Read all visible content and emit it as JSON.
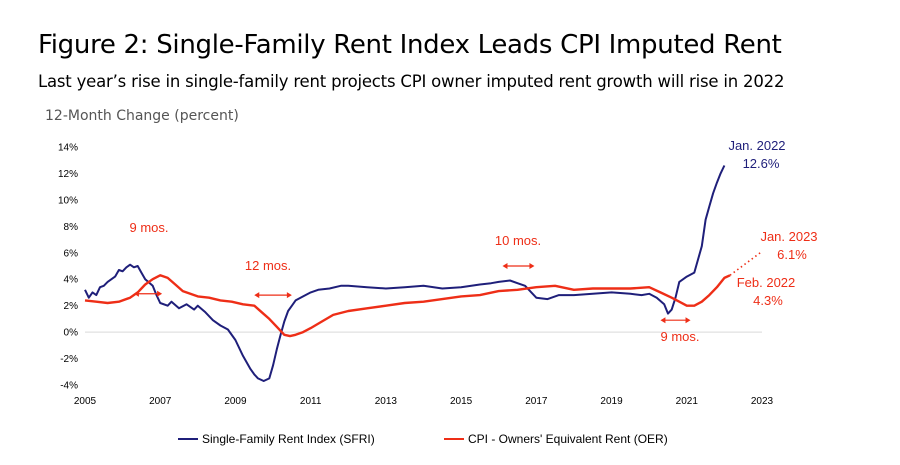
{
  "header": {
    "title": "Figure 2: Single-Family Rent Index Leads CPI Imputed Rent",
    "subtitle": "Last year’s rise in single-family rent projects CPI owner imputed rent growth will rise in 2022",
    "axis_title": "12-Month Change (percent)"
  },
  "colors": {
    "sfri": "#1f1f7a",
    "oer": "#ee2e17"
  },
  "legend": {
    "sfri": "Single-Family Rent Index (SFRI)",
    "oer": "CPI - Owners' Equivalent Rent (OER)"
  },
  "chart_data": {
    "type": "line",
    "xlabel": "",
    "ylabel": "12-Month Change (percent)",
    "xlim": [
      2005,
      2023
    ],
    "ylim": [
      -4,
      14
    ],
    "x_ticks": [
      "2005",
      "2007",
      "2009",
      "2011",
      "2013",
      "2015",
      "2017",
      "2019",
      "2021",
      "2023"
    ],
    "y_ticks": [
      "-4%",
      "-2%",
      "0%",
      "2%",
      "4%",
      "6%",
      "8%",
      "10%",
      "12%",
      "14%"
    ],
    "grid": false,
    "legend_position": "bottom",
    "series": [
      {
        "name": "Single-Family Rent Index (SFRI)",
        "key": "sfri",
        "x": [
          2005.0,
          2005.1,
          2005.2,
          2005.3,
          2005.4,
          2005.5,
          2005.6,
          2005.8,
          2005.9,
          2006.0,
          2006.1,
          2006.2,
          2006.3,
          2006.4,
          2006.5,
          2006.6,
          2006.8,
          2006.9,
          2007.0,
          2007.2,
          2007.3,
          2007.5,
          2007.7,
          2007.9,
          2008.0,
          2008.2,
          2008.4,
          2008.6,
          2008.8,
          2009.0,
          2009.2,
          2009.4,
          2009.5,
          2009.6,
          2009.75,
          2009.9,
          2010.0,
          2010.1,
          2010.2,
          2010.3,
          2010.4,
          2010.5,
          2010.6,
          2010.8,
          2011.0,
          2011.2,
          2011.5,
          2011.8,
          2012.0,
          2012.5,
          2013.0,
          2013.5,
          2014.0,
          2014.5,
          2015.0,
          2015.5,
          2015.8,
          2016.0,
          2016.3,
          2016.5,
          2016.7,
          2017.0,
          2017.3,
          2017.6,
          2018.0,
          2018.5,
          2019.0,
          2019.5,
          2019.8,
          2020.0,
          2020.2,
          2020.4,
          2020.5,
          2020.6,
          2020.7,
          2020.8,
          2021.0,
          2021.2,
          2021.4,
          2021.5,
          2021.6,
          2021.7,
          2021.8,
          2021.9,
          2022.0
        ],
        "y": [
          3.2,
          2.6,
          3.0,
          2.8,
          3.4,
          3.5,
          3.8,
          4.2,
          4.7,
          4.6,
          4.9,
          5.1,
          4.9,
          5.0,
          4.5,
          4.0,
          3.5,
          2.8,
          2.2,
          2.0,
          2.3,
          1.8,
          2.1,
          1.7,
          2.0,
          1.5,
          0.9,
          0.5,
          0.2,
          -0.6,
          -1.8,
          -2.8,
          -3.2,
          -3.5,
          -3.7,
          -3.5,
          -2.5,
          -1.3,
          -0.2,
          0.8,
          1.6,
          2.0,
          2.4,
          2.7,
          3.0,
          3.2,
          3.3,
          3.5,
          3.5,
          3.4,
          3.3,
          3.4,
          3.5,
          3.3,
          3.4,
          3.6,
          3.7,
          3.8,
          3.9,
          3.7,
          3.5,
          2.6,
          2.5,
          2.8,
          2.8,
          2.9,
          3.0,
          2.9,
          2.8,
          2.9,
          2.6,
          2.1,
          1.4,
          1.7,
          2.6,
          3.8,
          4.2,
          4.5,
          6.5,
          8.5,
          9.5,
          10.5,
          11.3,
          12.0,
          12.6
        ]
      },
      {
        "name": "CPI - Owners' Equivalent Rent (OER)",
        "key": "oer",
        "x": [
          2005.0,
          2005.3,
          2005.6,
          2005.9,
          2006.2,
          2006.4,
          2006.6,
          2006.8,
          2007.0,
          2007.2,
          2007.4,
          2007.6,
          2007.8,
          2008.0,
          2008.3,
          2008.6,
          2008.9,
          2009.2,
          2009.5,
          2009.7,
          2009.9,
          2010.1,
          2010.3,
          2010.45,
          2010.6,
          2010.8,
          2011.0,
          2011.3,
          2011.6,
          2012.0,
          2012.5,
          2013.0,
          2013.5,
          2014.0,
          2014.5,
          2015.0,
          2015.5,
          2016.0,
          2016.5,
          2017.0,
          2017.5,
          2018.0,
          2018.5,
          2019.0,
          2019.5,
          2020.0,
          2020.3,
          2020.6,
          2020.8,
          2021.0,
          2021.2,
          2021.4,
          2021.6,
          2021.8,
          2022.0,
          2022.15
        ],
        "y": [
          2.4,
          2.3,
          2.2,
          2.3,
          2.6,
          3.0,
          3.6,
          4.0,
          4.3,
          4.1,
          3.6,
          3.1,
          2.9,
          2.7,
          2.6,
          2.4,
          2.3,
          2.1,
          2.0,
          1.5,
          1.0,
          0.4,
          -0.2,
          -0.3,
          -0.2,
          0.0,
          0.3,
          0.8,
          1.3,
          1.6,
          1.8,
          2.0,
          2.2,
          2.3,
          2.5,
          2.7,
          2.8,
          3.1,
          3.2,
          3.4,
          3.5,
          3.2,
          3.3,
          3.3,
          3.3,
          3.4,
          3.0,
          2.6,
          2.3,
          2.0,
          2.0,
          2.3,
          2.8,
          3.4,
          4.1,
          4.3
        ]
      }
    ],
    "projection": {
      "series": "oer",
      "x": [
        2022.15,
        2023.0
      ],
      "y": [
        4.3,
        6.1
      ]
    },
    "annotations": {
      "sfri_jan2022_date": "Jan. 2022",
      "sfri_jan2022_value": "12.6%",
      "oer_jan2023_date": "Jan. 2023",
      "oer_jan2023_value": "6.1%",
      "oer_feb2022_date": "Feb. 2022",
      "oer_feb2022_value": "4.3%",
      "lead_2006": "9 mos.",
      "lead_2010": "12 mos.",
      "lead_2016": "10 mos.",
      "lead_2021": "9 mos."
    },
    "lead_arrows": [
      {
        "label_key": "lead_2006",
        "x": [
          2006.3,
          2007.05
        ],
        "y": 2.9
      },
      {
        "label_key": "lead_2010",
        "x": [
          2009.5,
          2010.5
        ],
        "y": 2.8
      },
      {
        "label_key": "lead_2016",
        "x": [
          2016.1,
          2016.95
        ],
        "y": 5.0
      },
      {
        "label_key": "lead_2021",
        "x": [
          2020.3,
          2021.1
        ],
        "y": 0.9
      }
    ]
  }
}
